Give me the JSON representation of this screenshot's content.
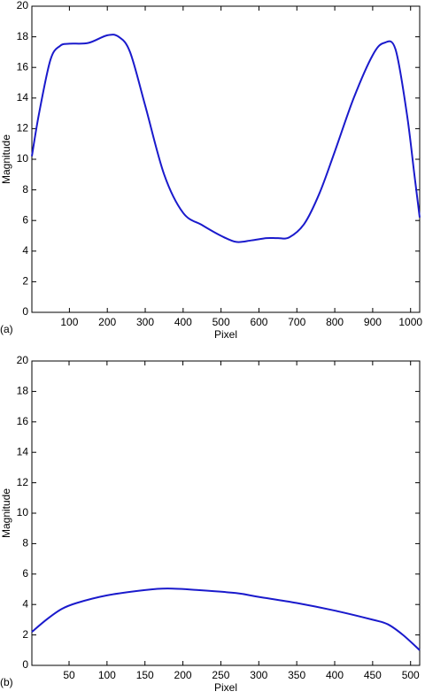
{
  "chart_data": [
    {
      "type": "line",
      "label": "(a)",
      "xlabel": "Pixel",
      "ylabel": "Magnitude",
      "color": "#1a1acc",
      "x": [
        1,
        20,
        50,
        75,
        100,
        150,
        200,
        230,
        260,
        300,
        350,
        400,
        450,
        500,
        540,
        580,
        620,
        650,
        680,
        720,
        760,
        800,
        850,
        900,
        930,
        960,
        990,
        1010,
        1024
      ],
      "values": [
        10.2,
        13,
        16.5,
        17.4,
        17.55,
        17.6,
        18.1,
        18.0,
        17,
        13.5,
        9,
        6.5,
        5.7,
        5,
        4.6,
        4.7,
        4.85,
        4.85,
        4.9,
        5.8,
        7.8,
        10.5,
        14,
        16.8,
        17.6,
        17.2,
        13,
        9,
        6.2
      ],
      "xlim": [
        1,
        1024
      ],
      "ylim": [
        0,
        20
      ],
      "xticks": [
        100,
        200,
        300,
        400,
        500,
        600,
        700,
        800,
        900,
        1000
      ],
      "yticks": [
        0,
        2,
        4,
        6,
        8,
        10,
        12,
        14,
        16,
        18,
        20
      ]
    },
    {
      "type": "line",
      "label": "(b)",
      "xlabel": "Pixel",
      "ylabel": "Magnitude",
      "color": "#1a1acc",
      "x": [
        1,
        20,
        40,
        60,
        100,
        150,
        180,
        220,
        270,
        300,
        350,
        400,
        450,
        470,
        490,
        512
      ],
      "values": [
        2.2,
        3,
        3.7,
        4.1,
        4.6,
        4.95,
        5.05,
        4.95,
        4.75,
        4.5,
        4.1,
        3.6,
        3.0,
        2.7,
        2.0,
        1.0
      ],
      "xlim": [
        1,
        512
      ],
      "ylim": [
        0,
        20
      ],
      "xticks": [
        50,
        100,
        150,
        200,
        250,
        300,
        350,
        400,
        450,
        500
      ],
      "yticks": [
        0,
        2,
        4,
        6,
        8,
        10,
        12,
        14,
        16,
        18,
        20
      ]
    }
  ]
}
